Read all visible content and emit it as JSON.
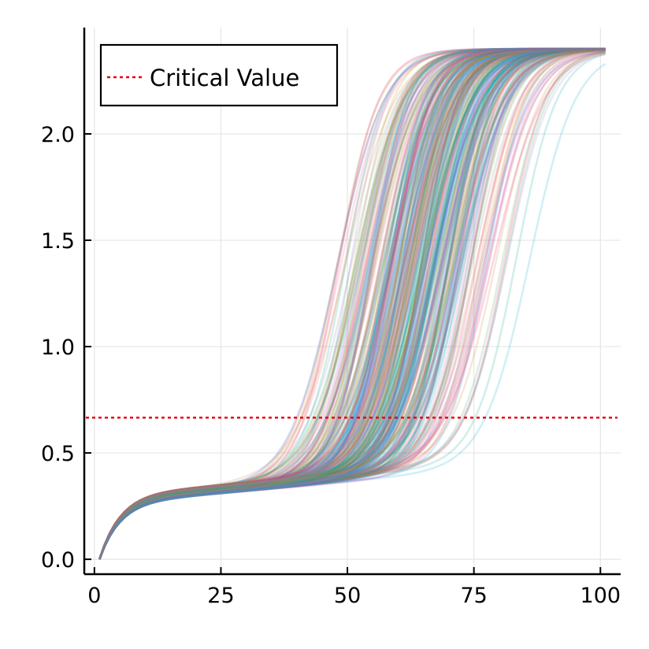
{
  "chart_data": {
    "type": "line",
    "title": "",
    "xlabel": "",
    "ylabel": "",
    "xlim": [
      -2,
      104
    ],
    "ylim": [
      -0.07,
      2.5
    ],
    "x_ticks": [
      0,
      25,
      50,
      75,
      100
    ],
    "x_tick_labels": [
      "0",
      "25",
      "50",
      "75",
      "100"
    ],
    "y_ticks": [
      0.0,
      0.5,
      1.0,
      1.5,
      2.0
    ],
    "y_tick_labels": [
      "0.0",
      "0.5",
      "1.0",
      "1.5",
      "2.0"
    ],
    "grid": true,
    "legend": {
      "position": "top-left",
      "entries": [
        {
          "label": "Critical Value",
          "color": "#e6000a",
          "style": "dotted"
        }
      ]
    },
    "reference_line": {
      "name": "Critical Value",
      "y": 0.666,
      "color": "#e6000a",
      "style": "dotted"
    },
    "ensemble": {
      "description_count": 300,
      "x_range": [
        1,
        101
      ],
      "y_start": 0.0,
      "plateau": 0.3,
      "upper_asymptote": 2.4,
      "switch_time_range": [
        48,
        90
      ],
      "line_opacity": 0.18,
      "palette": [
        "#009af9",
        "#e26f46",
        "#3da44d",
        "#c271d2",
        "#ac8e18",
        "#00a9ad",
        "#ed5e93",
        "#c68225",
        "#00a98d",
        "#8e971d",
        "#00a9cd",
        "#9b7fe9",
        "#618df6",
        "#f61067",
        "#888888"
      ]
    }
  }
}
